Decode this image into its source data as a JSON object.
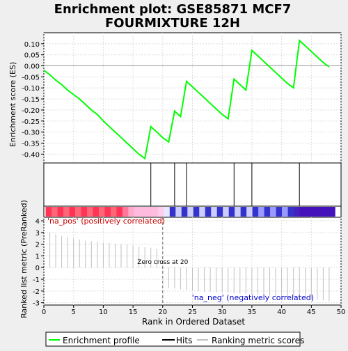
{
  "chart_data": {
    "type": "line",
    "title": "Enrichment plot: GSE85871 MCF7\nFOURMIXTURE 12H",
    "es_ylabel": "Enrichment score (ES)",
    "rank_ylabel": "Ranked list metric (PreRanked)",
    "xlabel": "Rank in Ordered Dataset",
    "xlim": [
      0,
      50
    ],
    "es_ylim": [
      -0.44,
      0.15
    ],
    "es_yticks": [
      0.1,
      0.05,
      0.0,
      -0.05,
      -0.1,
      -0.15,
      -0.2,
      -0.25,
      -0.3,
      -0.35,
      -0.4
    ],
    "es_ytick_labels": [
      "0.10",
      "0.05",
      "0.00",
      "-0.05",
      "-0.10",
      "-0.15",
      "-0.20",
      "-0.25",
      "-0.30",
      "-0.35",
      "-0.40"
    ],
    "xticks": [
      0,
      5,
      10,
      15,
      20,
      25,
      30,
      35,
      40,
      45,
      50
    ],
    "xtick_labels": [
      "0",
      "5",
      "10",
      "15",
      "20",
      "25",
      "30",
      "35",
      "40",
      "45",
      "50"
    ],
    "rank_ylim": [
      -3.2,
      4.3
    ],
    "rank_yticks": [
      4,
      3,
      2,
      1,
      0,
      -1,
      -2,
      -3
    ],
    "rank_ytick_labels": [
      "4",
      "3",
      "2",
      "1",
      "0",
      "-1",
      "-2",
      "-3"
    ],
    "series": [
      {
        "name": "Enrichment profile",
        "color": "#00ff00",
        "x": [
          0,
          1,
          2,
          3,
          4,
          5,
          6,
          7,
          8,
          9,
          10,
          11,
          12,
          13,
          14,
          15,
          16,
          17,
          18,
          19,
          20,
          21,
          22,
          23,
          24,
          25,
          26,
          27,
          28,
          29,
          30,
          31,
          32,
          33,
          34,
          35,
          36,
          37,
          38,
          39,
          40,
          41,
          42,
          43,
          44,
          45,
          46,
          47,
          48
        ],
        "y": [
          -0.02,
          -0.04,
          -0.065,
          -0.085,
          -0.11,
          -0.13,
          -0.15,
          -0.175,
          -0.2,
          -0.22,
          -0.25,
          -0.275,
          -0.3,
          -0.325,
          -0.35,
          -0.375,
          -0.4,
          -0.42,
          -0.275,
          -0.3,
          -0.325,
          -0.345,
          -0.205,
          -0.23,
          -0.07,
          -0.095,
          -0.12,
          -0.145,
          -0.17,
          -0.195,
          -0.22,
          -0.24,
          -0.06,
          -0.085,
          -0.11,
          0.07,
          0.045,
          0.02,
          -0.005,
          -0.03,
          -0.055,
          -0.08,
          -0.1,
          0.115,
          0.09,
          0.065,
          0.04,
          0.015,
          -0.005
        ]
      }
    ],
    "hits": {
      "name": "Hits",
      "color": "#000000",
      "x": [
        18,
        22,
        24,
        32,
        35,
        43
      ]
    },
    "ranking_metric": {
      "name": "Ranking metric scores",
      "color": "#c0c0c0",
      "x": [
        1,
        2,
        3,
        4,
        5,
        6,
        7,
        8,
        9,
        10,
        11,
        12,
        13,
        14,
        15,
        16,
        17,
        18,
        19,
        20,
        21,
        22,
        23,
        24,
        25,
        26,
        27,
        28,
        29,
        30,
        31,
        32,
        33,
        34,
        35,
        36,
        37,
        38,
        39,
        40,
        41,
        42,
        43,
        44,
        45,
        46,
        47,
        48
      ],
      "values": [
        3.0,
        2.85,
        2.7,
        2.6,
        2.5,
        2.4,
        2.3,
        2.25,
        2.2,
        2.15,
        2.1,
        2.05,
        2.0,
        1.95,
        1.9,
        1.8,
        1.75,
        1.7,
        1.6,
        0.05,
        -1.75,
        -1.8,
        -1.85,
        -1.9,
        -1.95,
        -2.0,
        -2.05,
        -2.05,
        -2.1,
        -2.1,
        -2.15,
        -2.2,
        -2.2,
        -2.25,
        -2.3,
        -2.35,
        -2.35,
        -2.4,
        -2.45,
        -2.5,
        -2.5,
        -2.55,
        -2.6,
        -2.65,
        -2.7,
        -2.75,
        -2.8,
        -2.85
      ]
    },
    "zero_cross": 20,
    "zero_cross_label": "Zero cross at 20",
    "pos_label": "'na_pos' (positively correlated)",
    "neg_label": "'na_neg' (negatively correlated)",
    "pos_color": "#cc0000",
    "neg_color": "#0000cc",
    "gene_bar_cells": [
      "#ff3355",
      "#ff6677",
      "#ff3355",
      "#ff6677",
      "#ff3355",
      "#ff6677",
      "#ff3355",
      "#ff6677",
      "#ff3355",
      "#ff6677",
      "#ff3355",
      "#ff6677",
      "#ff3355",
      "#ff7799",
      "#ffaacc",
      "#ffbbdd",
      "#ffbbdd",
      "#ffbbdd",
      "#ffbbdd",
      "#ffccee",
      "#e8e8ff",
      "#3333cc",
      "#ccccff",
      "#3333cc",
      "#ccccff",
      "#3333cc",
      "#ccccff",
      "#3333cc",
      "#ccccff",
      "#3333cc",
      "#ccccff",
      "#3333cc",
      "#ccccff",
      "#3333cc",
      "#ccccff",
      "#3333cc",
      "#9999ff",
      "#3333cc",
      "#9999ff",
      "#3333cc",
      "#9999ff",
      "#3333cc",
      "#4422bb",
      "#4411bb",
      "#4411bb",
      "#4411bb",
      "#4411bb",
      "#4411bb",
      "#4411bb"
    ],
    "legend_position": "bottom"
  }
}
